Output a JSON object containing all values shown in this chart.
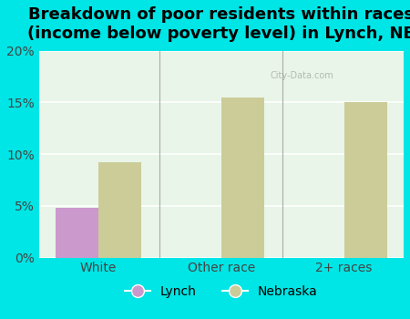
{
  "title": "Breakdown of poor residents within races\n(income below poverty level) in Lynch, NE",
  "categories": [
    "White",
    "Other race",
    "2+ races"
  ],
  "lynch_values": [
    4.8,
    0,
    0
  ],
  "nebraska_values": [
    9.2,
    15.5,
    15.0
  ],
  "lynch_color": "#cc99cc",
  "nebraska_color": "#cccc99",
  "bar_width": 0.35,
  "ylim": [
    0,
    20
  ],
  "yticks": [
    0,
    5,
    10,
    15,
    20
  ],
  "yticklabels": [
    "0%",
    "5%",
    "10%",
    "15%",
    "20%"
  ],
  "background_color": "#00e5e5",
  "plot_bg": "#e8f5e8",
  "legend_lynch": "Lynch",
  "legend_nebraska": "Nebraska",
  "title_fontsize": 13,
  "watermark_text": "City-Data.com"
}
